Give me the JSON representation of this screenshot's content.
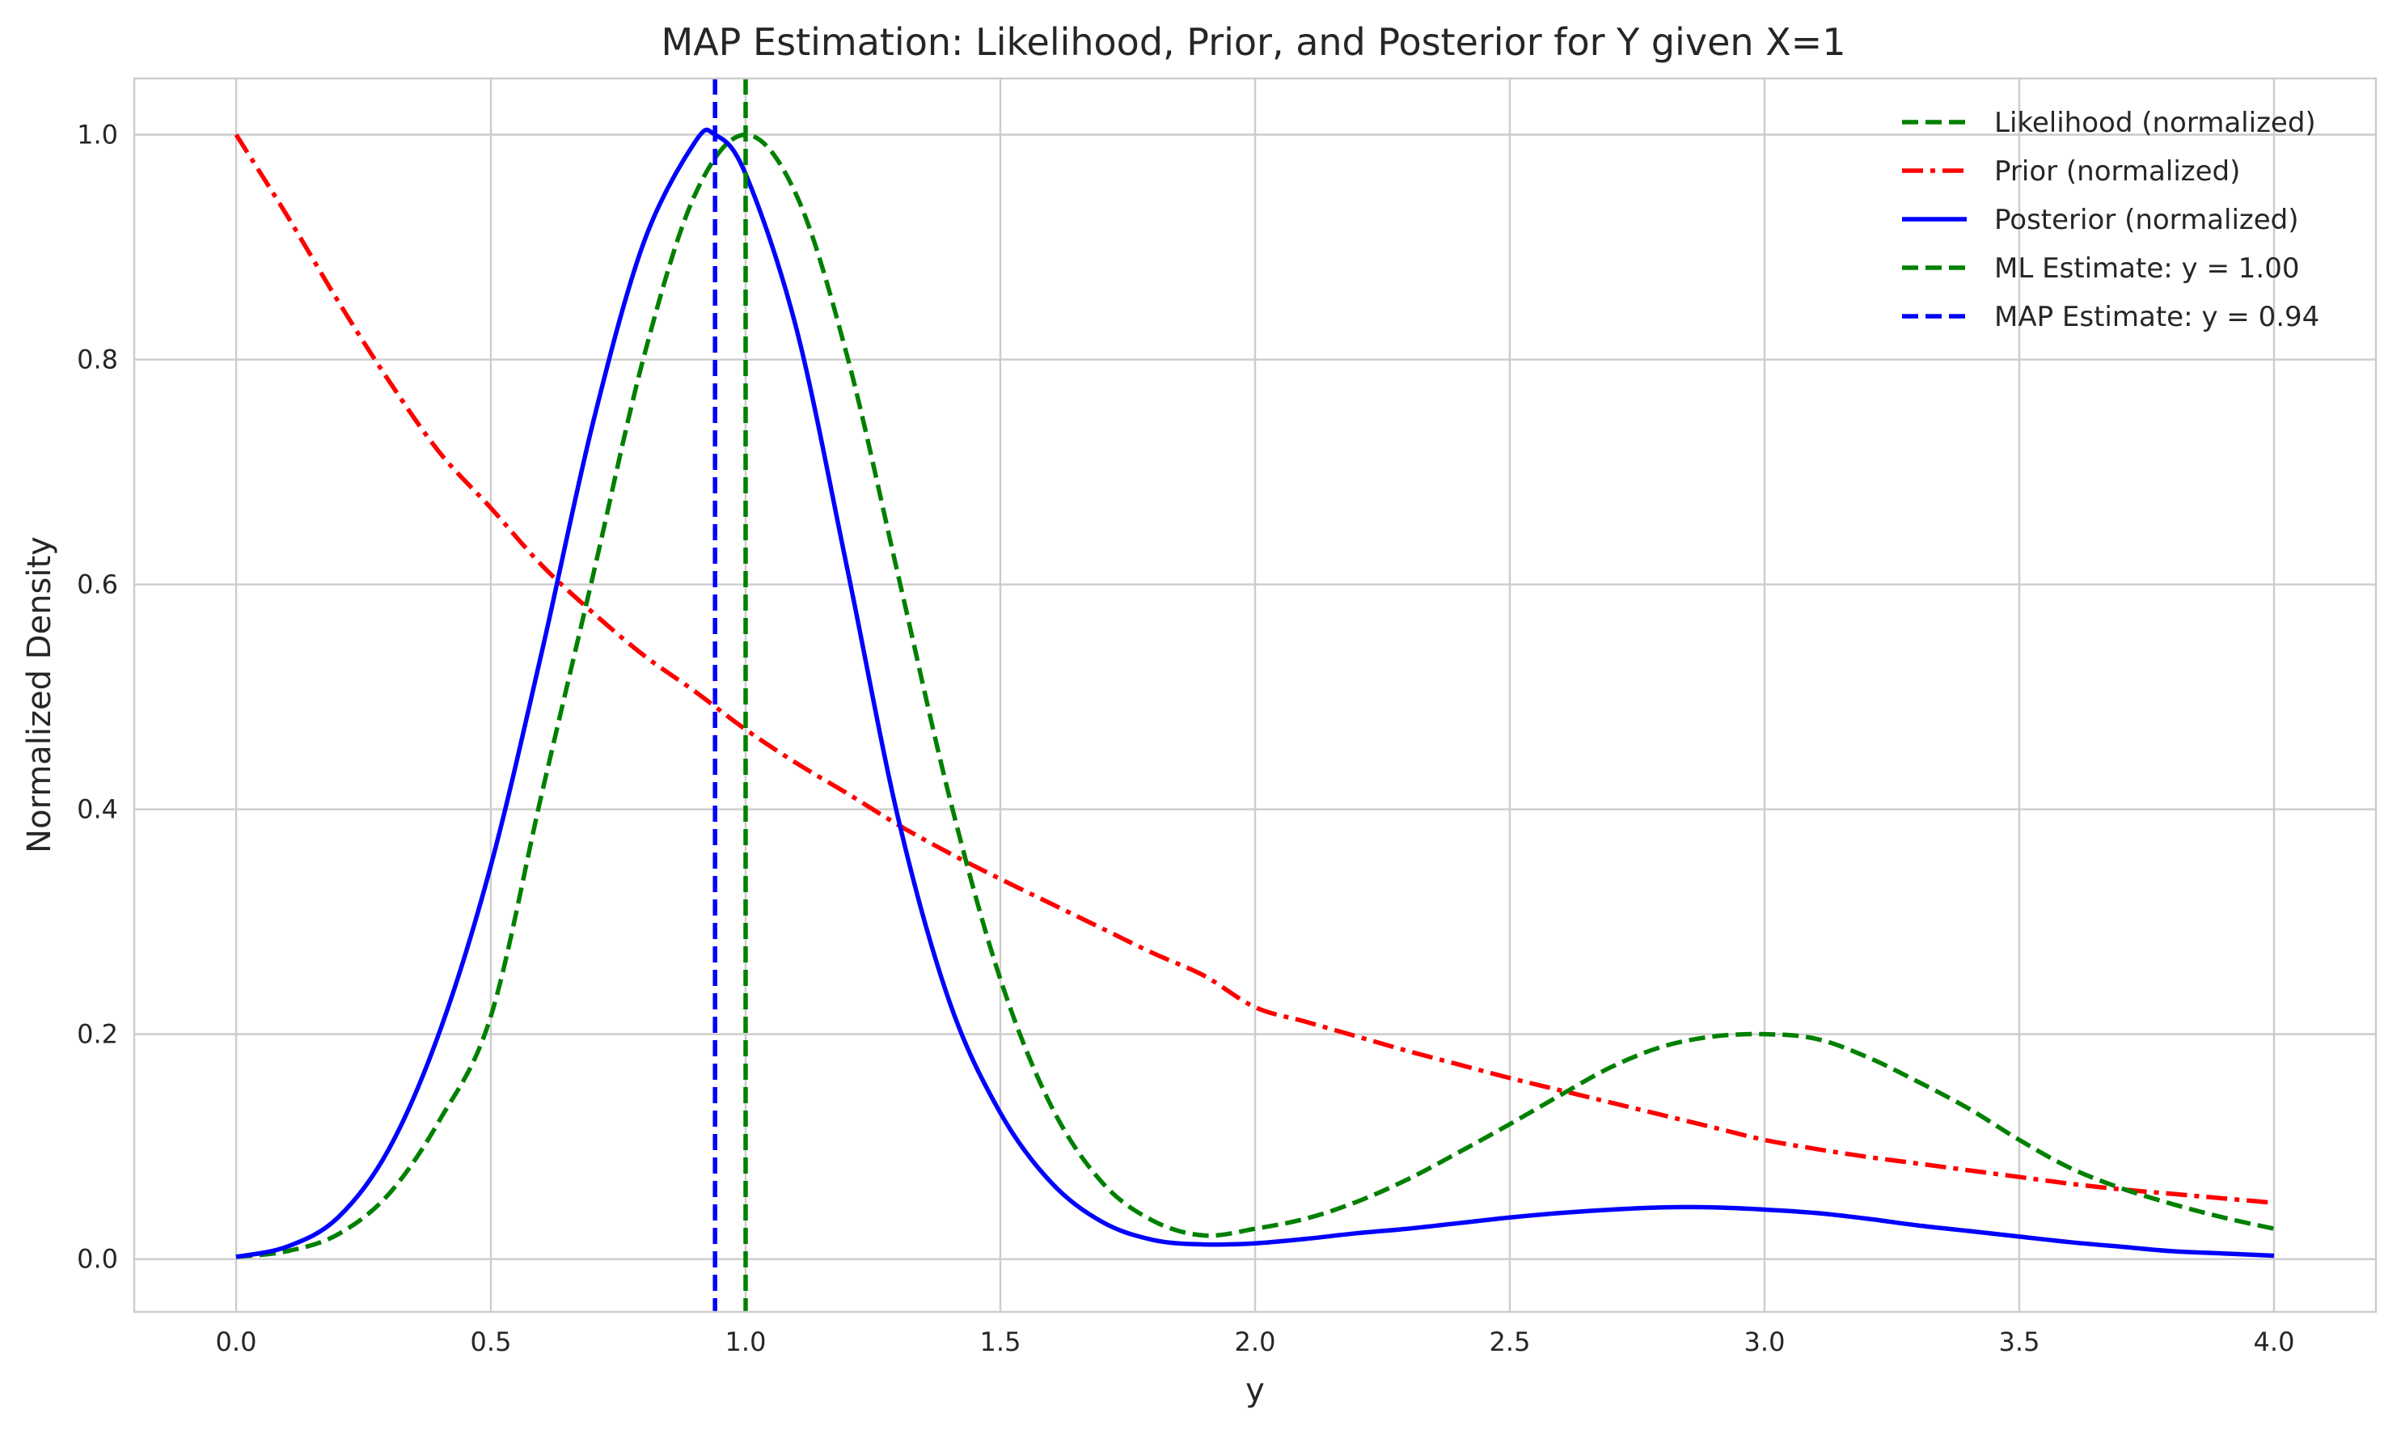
{
  "chart_data": {
    "type": "line",
    "title": "MAP Estimation: Likelihood, Prior, and Posterior for Y given X=1",
    "xlabel": "y",
    "ylabel": "Normalized Density",
    "xlim": [
      -0.2,
      4.2
    ],
    "ylim": [
      -0.047,
      1.05
    ],
    "xticks": [
      0.0,
      0.5,
      1.0,
      1.5,
      2.0,
      2.5,
      3.0,
      3.5,
      4.0
    ],
    "xtick_labels": [
      "0.0",
      "0.5",
      "1.0",
      "1.5",
      "2.0",
      "2.5",
      "3.0",
      "3.5",
      "4.0"
    ],
    "yticks": [
      0.0,
      0.2,
      0.4,
      0.6,
      0.8,
      1.0
    ],
    "ytick_labels": [
      "0.0",
      "0.2",
      "0.4",
      "0.6",
      "0.8",
      "1.0"
    ],
    "grid": true,
    "legend_position": "top-right",
    "series": [
      {
        "name": "Likelihood (normalized)",
        "color": "#008000",
        "style": "dashed",
        "x": [
          0.0,
          0.1,
          0.2,
          0.3,
          0.4,
          0.5,
          0.6,
          0.7,
          0.8,
          0.9,
          1.0,
          1.1,
          1.2,
          1.3,
          1.4,
          1.5,
          1.6,
          1.7,
          1.8,
          1.9,
          2.0,
          2.1,
          2.2,
          2.3,
          2.4,
          2.5,
          2.6,
          2.7,
          2.8,
          2.9,
          3.0,
          3.1,
          3.2,
          3.3,
          3.4,
          3.5,
          3.6,
          3.7,
          3.8,
          3.9,
          4.0
        ],
        "y": [
          0.002,
          0.007,
          0.022,
          0.058,
          0.124,
          0.216,
          0.414,
          0.607,
          0.802,
          0.946,
          1.0,
          0.946,
          0.802,
          0.607,
          0.411,
          0.249,
          0.136,
          0.068,
          0.034,
          0.021,
          0.027,
          0.036,
          0.051,
          0.071,
          0.095,
          0.12,
          0.146,
          0.171,
          0.189,
          0.198,
          0.2,
          0.196,
          0.18,
          0.158,
          0.134,
          0.106,
          0.081,
          0.063,
          0.049,
          0.037,
          0.027
        ]
      },
      {
        "name": "Prior (normalized)",
        "color": "#ff0000",
        "style": "dashdot",
        "x": [
          0.0,
          0.1,
          0.2,
          0.3,
          0.4,
          0.5,
          0.6,
          0.7,
          0.8,
          0.9,
          1.0,
          1.1,
          1.2,
          1.3,
          1.4,
          1.5,
          1.6,
          1.7,
          1.8,
          1.9,
          2.0,
          2.1,
          2.2,
          2.3,
          2.4,
          2.5,
          2.6,
          2.7,
          2.8,
          2.9,
          3.0,
          3.1,
          3.2,
          3.3,
          3.4,
          3.5,
          3.6,
          3.7,
          3.8,
          3.9,
          4.0
        ],
        "y": [
          1.0,
          0.928,
          0.852,
          0.781,
          0.717,
          0.668,
          0.617,
          0.575,
          0.537,
          0.505,
          0.471,
          0.441,
          0.414,
          0.386,
          0.361,
          0.338,
          0.316,
          0.294,
          0.272,
          0.252,
          0.224,
          0.211,
          0.198,
          0.185,
          0.173,
          0.161,
          0.15,
          0.139,
          0.128,
          0.117,
          0.106,
          0.098,
          0.091,
          0.085,
          0.079,
          0.073,
          0.067,
          0.062,
          0.058,
          0.054,
          0.05
        ]
      },
      {
        "name": "Posterior (normalized)",
        "color": "#0000ff",
        "style": "solid",
        "x": [
          0.0,
          0.1,
          0.2,
          0.3,
          0.4,
          0.5,
          0.6,
          0.7,
          0.8,
          0.9,
          0.94,
          1.0,
          1.1,
          1.2,
          1.3,
          1.4,
          1.5,
          1.6,
          1.7,
          1.8,
          1.9,
          2.0,
          2.1,
          2.2,
          2.3,
          2.4,
          2.5,
          2.6,
          2.7,
          2.8,
          2.9,
          3.0,
          3.1,
          3.2,
          3.3,
          3.4,
          3.5,
          3.6,
          3.7,
          3.8,
          3.9,
          4.0
        ],
        "y": [
          0.002,
          0.011,
          0.037,
          0.098,
          0.203,
          0.35,
          0.54,
          0.743,
          0.904,
          0.993,
          1.0,
          0.965,
          0.827,
          0.613,
          0.391,
          0.229,
          0.13,
          0.068,
          0.033,
          0.017,
          0.013,
          0.014,
          0.018,
          0.023,
          0.027,
          0.032,
          0.037,
          0.041,
          0.044,
          0.046,
          0.046,
          0.044,
          0.041,
          0.036,
          0.03,
          0.025,
          0.02,
          0.015,
          0.011,
          0.007,
          0.005,
          0.003
        ]
      }
    ],
    "vlines": [
      {
        "name": "ML Estimate: y = 1.00",
        "x": 1.0,
        "color": "#008000",
        "style": "dashed"
      },
      {
        "name": "MAP Estimate: y = 0.94",
        "x": 0.94,
        "color": "#0000ff",
        "style": "dashed"
      }
    ]
  }
}
